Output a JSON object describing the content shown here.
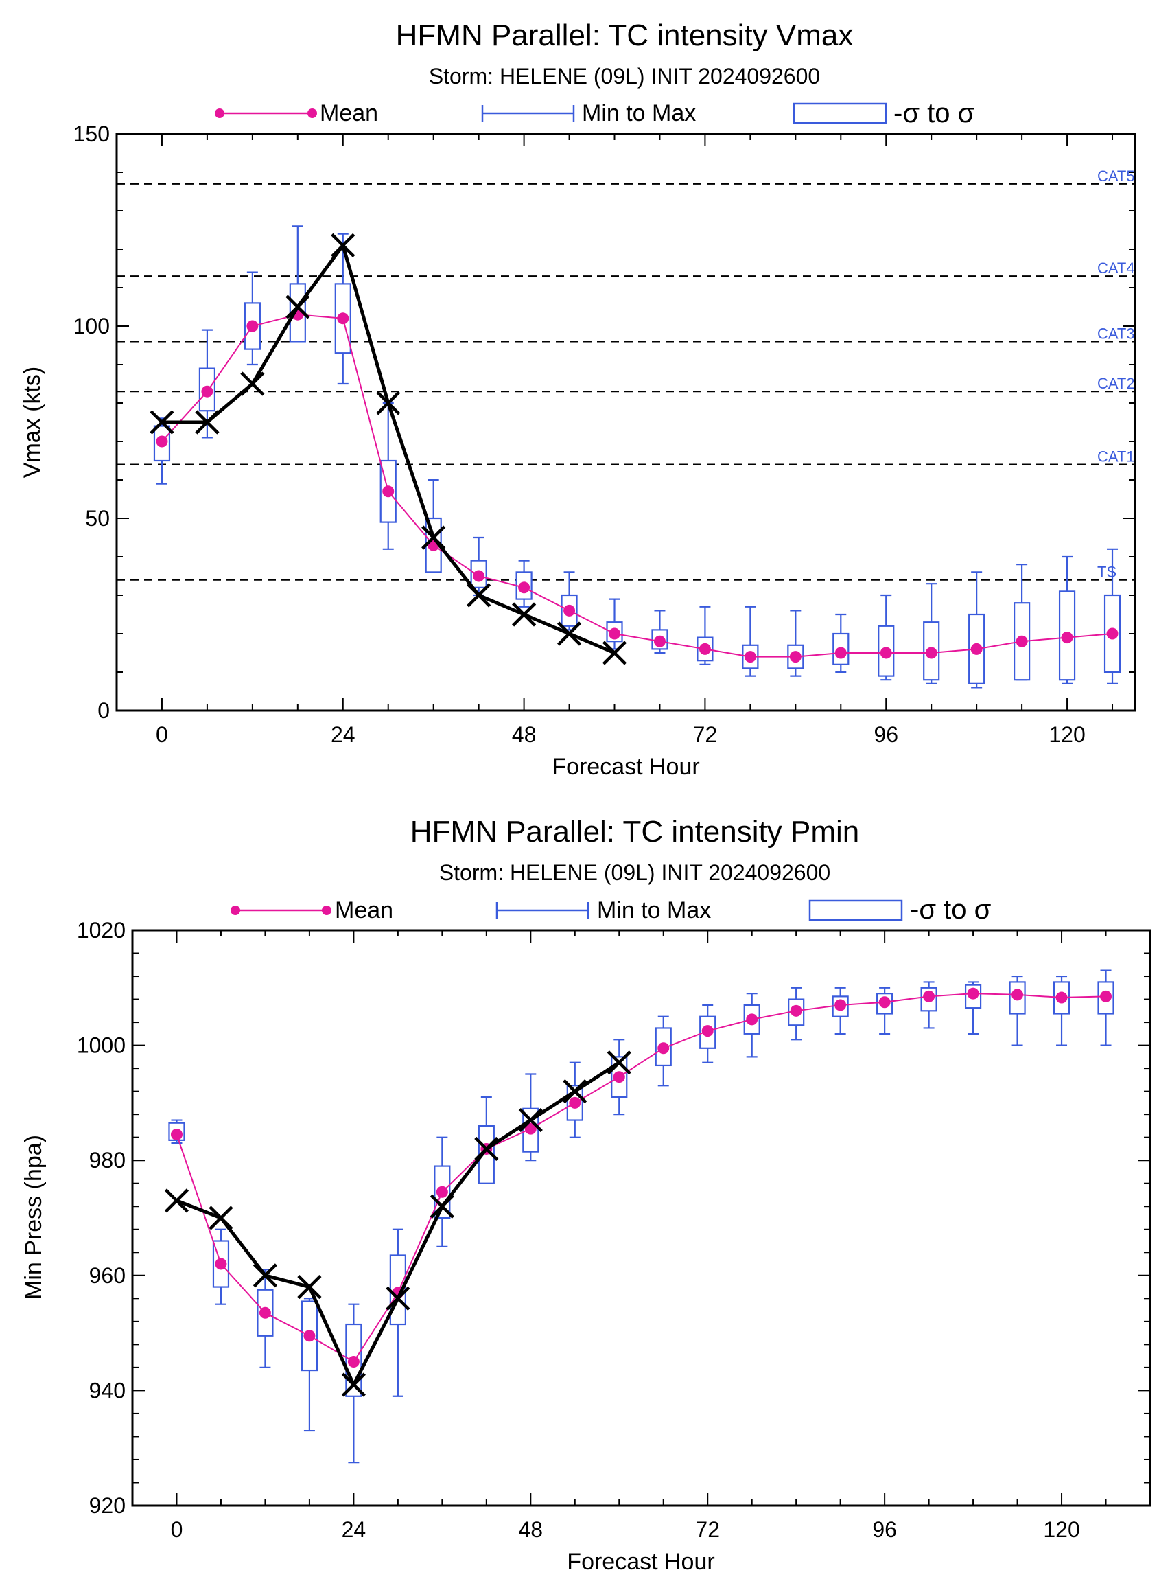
{
  "chart_data": [
    {
      "type": "box-line",
      "title": "HFMN Parallel: TC intensity Vmax",
      "subtitle": "Storm: HELENE (09L) INIT 2024092600",
      "xlabel": "Forecast Hour",
      "ylabel": "Vmax (kts)",
      "xlim": [
        -6,
        129
      ],
      "ylim": [
        0,
        150
      ],
      "xticks": [
        "0",
        "24",
        "48",
        "72",
        "96",
        "120"
      ],
      "yticks": [
        "0",
        "50",
        "100",
        "150"
      ],
      "legend": {
        "mean": "Mean",
        "minmax": "Min to Max",
        "sigma": "-σ to σ",
        "position": "top"
      },
      "ref_lines": [
        {
          "label": "TS",
          "value": 34
        },
        {
          "label": "CAT1",
          "value": 64
        },
        {
          "label": "CAT2",
          "value": 83
        },
        {
          "label": "CAT3",
          "value": 96
        },
        {
          "label": "CAT4",
          "value": 113
        },
        {
          "label": "CAT5",
          "value": 137
        }
      ],
      "forecast_hours": [
        0,
        6,
        12,
        18,
        24,
        30,
        36,
        42,
        48,
        54,
        60,
        66,
        72,
        78,
        84,
        90,
        96,
        102,
        108,
        114,
        120,
        126
      ],
      "mean": [
        70,
        83,
        100,
        103,
        102,
        57,
        43,
        35,
        32,
        26,
        20,
        18,
        16,
        14,
        14,
        15,
        15,
        15,
        16,
        18,
        19,
        20
      ],
      "min": [
        59,
        71,
        90,
        96,
        85,
        42,
        36,
        30,
        27,
        21,
        16,
        15,
        12,
        9,
        9,
        10,
        8,
        7,
        6,
        8,
        7,
        7
      ],
      "max": [
        76,
        99,
        114,
        126,
        124,
        80,
        60,
        45,
        39,
        36,
        29,
        26,
        27,
        27,
        26,
        25,
        30,
        33,
        36,
        38,
        40,
        42
      ],
      "sigma_low": [
        65,
        78,
        94,
        96,
        93,
        49,
        36,
        32,
        29,
        22,
        18,
        16,
        13,
        11,
        11,
        12,
        9,
        8,
        7,
        8,
        8,
        10
      ],
      "sigma_high": [
        74,
        89,
        106,
        111,
        111,
        65,
        50,
        39,
        36,
        30,
        23,
        21,
        19,
        17,
        17,
        20,
        22,
        23,
        25,
        28,
        31,
        30
      ],
      "observed": {
        "hours": [
          0,
          6,
          12,
          18,
          24,
          30,
          36,
          42,
          48,
          54,
          60
        ],
        "values": [
          75,
          75,
          85,
          105,
          121,
          80,
          45,
          30,
          25,
          20,
          15
        ]
      }
    },
    {
      "type": "box-line",
      "title": "HFMN Parallel: TC intensity Pmin",
      "subtitle": "Storm: HELENE (09L) INIT 2024092600",
      "xlabel": "Forecast Hour",
      "ylabel": "Min Press (hpa)",
      "xlim": [
        -6,
        132
      ],
      "ylim": [
        920,
        1020
      ],
      "xticks": [
        "0",
        "24",
        "48",
        "72",
        "96",
        "120"
      ],
      "yticks": [
        "920",
        "940",
        "960",
        "980",
        "1000",
        "1020"
      ],
      "legend": {
        "mean": "Mean",
        "minmax": "Min to Max",
        "sigma": "-σ to σ",
        "position": "top"
      },
      "forecast_hours": [
        0,
        6,
        12,
        18,
        24,
        30,
        36,
        42,
        48,
        54,
        60,
        66,
        72,
        78,
        84,
        90,
        96,
        102,
        108,
        114,
        120,
        126
      ],
      "mean": [
        984.5,
        962,
        953.5,
        949.5,
        945,
        957,
        974.5,
        982,
        985.5,
        990,
        994.5,
        999.5,
        1002.5,
        1004.5,
        1006,
        1007,
        1007.5,
        1008.5,
        1009,
        1008.8,
        1008.3,
        1008.5
      ],
      "min": [
        983,
        955,
        944,
        933,
        927.5,
        939,
        965,
        976,
        980,
        984,
        988,
        993,
        997,
        998,
        1001,
        1002,
        1002,
        1003,
        1002,
        1000,
        1000,
        1000
      ],
      "max": [
        987,
        968,
        961,
        956,
        955,
        968,
        984,
        991,
        995,
        997,
        1001,
        1005,
        1007,
        1009,
        1010,
        1010,
        1010,
        1011,
        1011,
        1012,
        1012,
        1013
      ],
      "sigma_low": [
        983.5,
        958,
        949.5,
        943.5,
        939,
        951.5,
        970,
        976,
        981.5,
        987,
        991,
        996.5,
        999.5,
        1002,
        1003.5,
        1005,
        1005.5,
        1006,
        1006.5,
        1005.5,
        1005.5,
        1005.5
      ],
      "sigma_high": [
        986.5,
        966,
        957.5,
        955.5,
        951.5,
        963.5,
        979,
        986,
        989,
        993,
        998,
        1003,
        1005,
        1007,
        1008,
        1008.5,
        1009,
        1010,
        1010.5,
        1011,
        1011,
        1011
      ],
      "observed": {
        "hours": [
          0,
          6,
          12,
          18,
          24,
          30,
          36,
          42,
          48,
          54,
          60
        ],
        "values": [
          973,
          970,
          960,
          958,
          941,
          956,
          972,
          982,
          987,
          992,
          997
        ]
      }
    }
  ]
}
